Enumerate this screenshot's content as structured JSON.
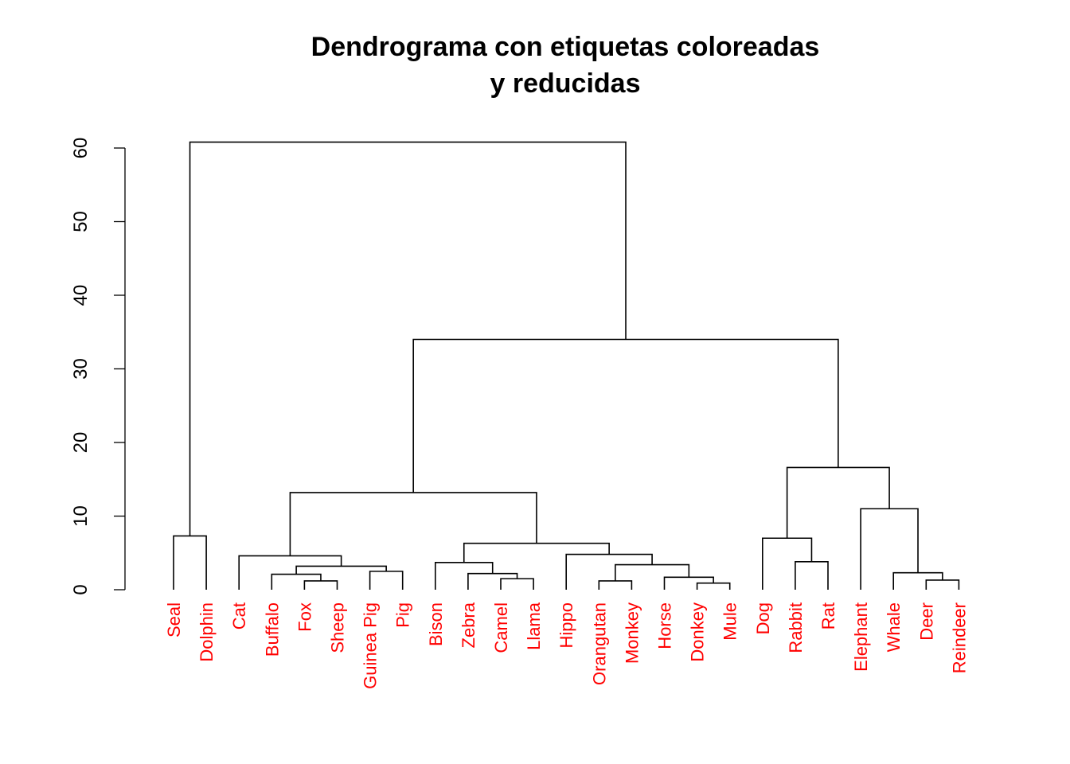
{
  "chart_data": {
    "type": "dendrogram",
    "title_lines": [
      "Dendrograma con etiquetas coloreadas",
      "y reducidas"
    ],
    "xlabel": "",
    "ylabel": "",
    "ylim": [
      0,
      60
    ],
    "yticks": [
      0,
      10,
      20,
      30,
      40,
      50,
      60
    ],
    "label_color": "#ff0000",
    "line_color": "#000000",
    "leaves": [
      "Seal",
      "Dolphin",
      "Cat",
      "Buffalo",
      "Fox",
      "Sheep",
      "Guinea Pig",
      "Pig",
      "Bison",
      "Zebra",
      "Camel",
      "Llama",
      "Hippo",
      "Orangutan",
      "Monkey",
      "Horse",
      "Donkey",
      "Mule",
      "Dog",
      "Rabbit",
      "Rat",
      "Elephant",
      "Whale",
      "Deer",
      "Reindeer"
    ],
    "merges": [
      {
        "left": "Seal",
        "right": "Dolphin",
        "height": 7.3
      },
      {
        "left": "Fox",
        "right": "Sheep",
        "height": 1.2
      },
      {
        "left": "Buffalo",
        "right": [
          "Fox",
          "Sheep"
        ],
        "height": 2.1
      },
      {
        "left": "Guinea Pig",
        "right": "Pig",
        "height": 2.5
      },
      {
        "left": [
          "Buffalo",
          "Fox",
          "Sheep"
        ],
        "right": [
          "Guinea Pig",
          "Pig"
        ],
        "height": 3.2
      },
      {
        "left": "Cat",
        "right": [
          "Buffalo",
          "Fox",
          "Sheep",
          "Guinea Pig",
          "Pig"
        ],
        "height": 4.6
      },
      {
        "left": "Camel",
        "right": "Llama",
        "height": 1.5
      },
      {
        "left": "Zebra",
        "right": [
          "Camel",
          "Llama"
        ],
        "height": 2.2
      },
      {
        "left": "Bison",
        "right": [
          "Zebra",
          "Camel",
          "Llama"
        ],
        "height": 3.7
      },
      {
        "left": "Orangutan",
        "right": "Monkey",
        "height": 1.2
      },
      {
        "left": "Donkey",
        "right": "Mule",
        "height": 0.9
      },
      {
        "left": "Horse",
        "right": [
          "Donkey",
          "Mule"
        ],
        "height": 1.7
      },
      {
        "left": [
          "Orangutan",
          "Monkey"
        ],
        "right": [
          "Horse",
          "Donkey",
          "Mule"
        ],
        "height": 3.4
      },
      {
        "left": "Hippo",
        "right": [
          "Orangutan",
          "Monkey",
          "Horse",
          "Donkey",
          "Mule"
        ],
        "height": 4.8
      },
      {
        "left": [
          "Bison",
          "Zebra",
          "Camel",
          "Llama"
        ],
        "right": [
          "Hippo",
          "Orangutan",
          "Monkey",
          "Horse",
          "Donkey",
          "Mule"
        ],
        "height": 6.3
      },
      {
        "left": [
          "Cat",
          "Buffalo",
          "Fox",
          "Sheep",
          "Guinea Pig",
          "Pig"
        ],
        "right": [
          "Bison",
          "Zebra",
          "Camel",
          "Llama",
          "Hippo",
          "Orangutan",
          "Monkey",
          "Horse",
          "Donkey",
          "Mule"
        ],
        "height": 13.2
      },
      {
        "left": "Rabbit",
        "right": "Rat",
        "height": 3.8
      },
      {
        "left": "Dog",
        "right": [
          "Rabbit",
          "Rat"
        ],
        "height": 7.0
      },
      {
        "left": "Deer",
        "right": "Reindeer",
        "height": 1.3
      },
      {
        "left": "Whale",
        "right": [
          "Deer",
          "Reindeer"
        ],
        "height": 2.3
      },
      {
        "left": "Elephant",
        "right": [
          "Whale",
          "Deer",
          "Reindeer"
        ],
        "height": 11.0
      },
      {
        "left": [
          "Dog",
          "Rabbit",
          "Rat"
        ],
        "right": [
          "Elephant",
          "Whale",
          "Deer",
          "Reindeer"
        ],
        "height": 16.6
      },
      {
        "left": [
          "Cat",
          "Buffalo",
          "Fox",
          "Sheep",
          "Guinea Pig",
          "Pig",
          "Bison",
          "Zebra",
          "Camel",
          "Llama",
          "Hippo",
          "Orangutan",
          "Monkey",
          "Horse",
          "Donkey",
          "Mule"
        ],
        "right": [
          "Dog",
          "Rabbit",
          "Rat",
          "Elephant",
          "Whale",
          "Deer",
          "Reindeer"
        ],
        "height": 34.0
      },
      {
        "left": [
          "Seal",
          "Dolphin"
        ],
        "right": [
          "Cat",
          "Buffalo",
          "Fox",
          "Sheep",
          "Guinea Pig",
          "Pig",
          "Bison",
          "Zebra",
          "Camel",
          "Llama",
          "Hippo",
          "Orangutan",
          "Monkey",
          "Horse",
          "Donkey",
          "Mule",
          "Dog",
          "Rabbit",
          "Rat",
          "Elephant",
          "Whale",
          "Deer",
          "Reindeer"
        ],
        "height": 60.8
      }
    ]
  }
}
